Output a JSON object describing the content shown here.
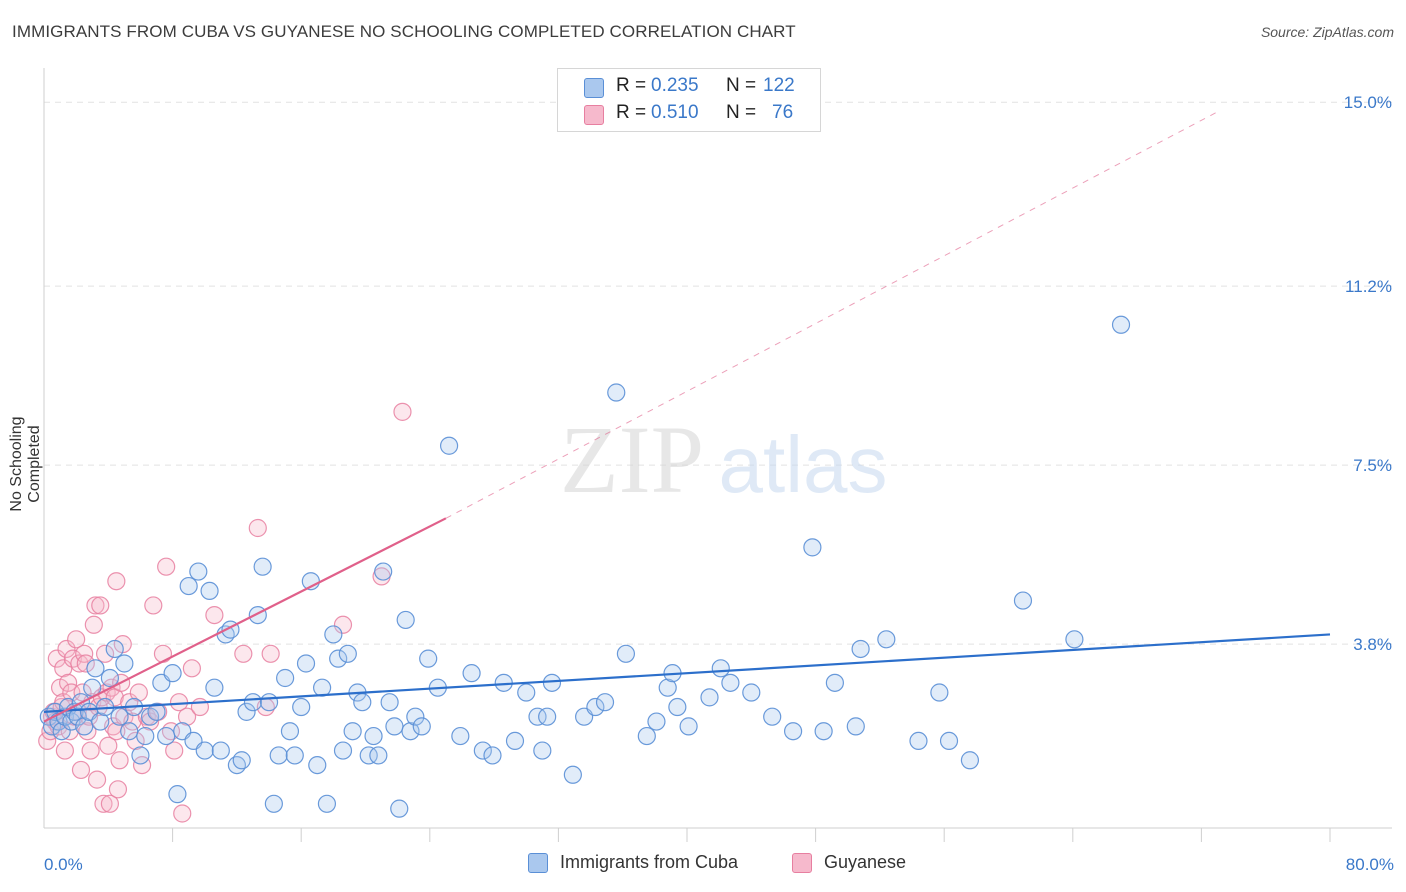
{
  "header": {
    "title": "IMMIGRANTS FROM CUBA VS GUYANESE NO SCHOOLING COMPLETED CORRELATION CHART",
    "source": "Source: ZipAtlas.com"
  },
  "watermark": {
    "zip": "ZIP",
    "atlas": "atlas"
  },
  "legend_top": {
    "rows": [
      {
        "r_label": "R =",
        "r_value": "0.235",
        "n_label": "N =",
        "n_value": "122"
      },
      {
        "r_label": "R =",
        "r_value": "0.510",
        "n_label": "N =",
        "n_value": "76"
      }
    ]
  },
  "legend_bottom": {
    "items": [
      {
        "label": "Immigrants from Cuba"
      },
      {
        "label": "Guyanese"
      }
    ]
  },
  "colors": {
    "blue_fill": "#aac8ee",
    "blue_stroke": "#5a8fd6",
    "blue_line": "#2c6fcb",
    "pink_fill": "#f6b9cc",
    "pink_stroke": "#e77fa0",
    "pink_line": "#e0608a",
    "value_text": "#3a78c9",
    "grid": "#e2e2e2"
  },
  "chart_data": {
    "type": "scatter",
    "title": "IMMIGRANTS FROM CUBA VS GUYANESE NO SCHOOLING COMPLETED CORRELATION CHART",
    "xlabel": "",
    "ylabel": "No Schooling Completed",
    "xlim": [
      0,
      80
    ],
    "ylim": [
      0,
      15.5
    ],
    "x_tick_labels": [
      "0.0%",
      "80.0%"
    ],
    "y_ticks": [
      3.8,
      7.5,
      11.2,
      15.0
    ],
    "y_tick_labels": [
      "3.8%",
      "7.5%",
      "11.2%",
      "15.0%"
    ],
    "grid": true,
    "legend_position": "top-center",
    "series": [
      {
        "name": "Immigrants from Cuba",
        "r": 0.235,
        "n": 122,
        "trend": {
          "x0": 0,
          "y0": 2.4,
          "x1": 80,
          "y1": 4.0
        },
        "points": [
          [
            0.3,
            2.3
          ],
          [
            0.5,
            2.1
          ],
          [
            0.7,
            2.4
          ],
          [
            0.9,
            2.2
          ],
          [
            1.1,
            2.0
          ],
          [
            1.3,
            2.3
          ],
          [
            1.5,
            2.5
          ],
          [
            1.7,
            2.2
          ],
          [
            1.9,
            2.4
          ],
          [
            2.1,
            2.3
          ],
          [
            2.3,
            2.6
          ],
          [
            2.5,
            2.1
          ],
          [
            2.8,
            2.4
          ],
          [
            3.0,
            2.9
          ],
          [
            3.2,
            3.3
          ],
          [
            3.5,
            2.2
          ],
          [
            3.8,
            2.5
          ],
          [
            4.1,
            3.1
          ],
          [
            4.4,
            3.7
          ],
          [
            4.7,
            2.3
          ],
          [
            5.0,
            3.4
          ],
          [
            5.3,
            2.0
          ],
          [
            5.6,
            2.5
          ],
          [
            6.0,
            1.5
          ],
          [
            6.3,
            1.9
          ],
          [
            6.6,
            2.3
          ],
          [
            7.0,
            2.4
          ],
          [
            7.3,
            3.0
          ],
          [
            7.6,
            1.9
          ],
          [
            8.0,
            3.2
          ],
          [
            8.3,
            0.7
          ],
          [
            8.6,
            2.0
          ],
          [
            9.0,
            5.0
          ],
          [
            9.3,
            1.8
          ],
          [
            9.6,
            5.3
          ],
          [
            10.0,
            1.6
          ],
          [
            10.3,
            4.9
          ],
          [
            10.6,
            2.9
          ],
          [
            11.0,
            1.6
          ],
          [
            11.3,
            4.0
          ],
          [
            11.6,
            4.1
          ],
          [
            12.0,
            1.3
          ],
          [
            12.3,
            1.4
          ],
          [
            12.6,
            2.4
          ],
          [
            13.0,
            2.6
          ],
          [
            13.3,
            4.4
          ],
          [
            13.6,
            5.4
          ],
          [
            14.0,
            2.6
          ],
          [
            14.3,
            0.5
          ],
          [
            14.6,
            1.5
          ],
          [
            15.0,
            3.1
          ],
          [
            15.3,
            2.0
          ],
          [
            15.6,
            1.5
          ],
          [
            16.0,
            2.5
          ],
          [
            16.3,
            3.4
          ],
          [
            16.6,
            5.1
          ],
          [
            17.0,
            1.3
          ],
          [
            17.3,
            2.9
          ],
          [
            17.6,
            0.5
          ],
          [
            18.0,
            4.0
          ],
          [
            18.3,
            3.5
          ],
          [
            18.6,
            1.6
          ],
          [
            18.9,
            3.6
          ],
          [
            19.2,
            2.0
          ],
          [
            19.5,
            2.8
          ],
          [
            19.8,
            2.6
          ],
          [
            20.2,
            1.5
          ],
          [
            20.5,
            1.9
          ],
          [
            20.8,
            1.5
          ],
          [
            21.1,
            5.3
          ],
          [
            21.5,
            2.6
          ],
          [
            21.8,
            2.1
          ],
          [
            22.1,
            0.4
          ],
          [
            22.5,
            4.3
          ],
          [
            22.8,
            2.0
          ],
          [
            23.1,
            2.3
          ],
          [
            23.5,
            2.1
          ],
          [
            23.9,
            3.5
          ],
          [
            24.5,
            2.9
          ],
          [
            25.2,
            7.9
          ],
          [
            25.9,
            1.9
          ],
          [
            26.6,
            3.2
          ],
          [
            27.3,
            1.6
          ],
          [
            27.9,
            1.5
          ],
          [
            28.6,
            3.0
          ],
          [
            29.3,
            1.8
          ],
          [
            30.0,
            2.8
          ],
          [
            30.7,
            2.3
          ],
          [
            31.0,
            1.6
          ],
          [
            31.3,
            2.3
          ],
          [
            31.6,
            3.0
          ],
          [
            32.9,
            1.1
          ],
          [
            33.6,
            2.3
          ],
          [
            34.3,
            2.5
          ],
          [
            34.9,
            2.6
          ],
          [
            35.6,
            9.0
          ],
          [
            36.2,
            3.6
          ],
          [
            37.5,
            1.9
          ],
          [
            38.1,
            2.2
          ],
          [
            38.8,
            2.9
          ],
          [
            39.1,
            3.2
          ],
          [
            39.4,
            2.5
          ],
          [
            40.1,
            2.1
          ],
          [
            41.4,
            2.7
          ],
          [
            42.1,
            3.3
          ],
          [
            42.7,
            3.0
          ],
          [
            44.0,
            2.8
          ],
          [
            45.3,
            2.3
          ],
          [
            46.6,
            2.0
          ],
          [
            47.8,
            5.8
          ],
          [
            48.5,
            2.0
          ],
          [
            49.2,
            3.0
          ],
          [
            50.5,
            2.1
          ],
          [
            50.8,
            3.7
          ],
          [
            52.4,
            3.9
          ],
          [
            54.4,
            1.8
          ],
          [
            55.7,
            2.8
          ],
          [
            56.3,
            1.8
          ],
          [
            57.6,
            1.4
          ],
          [
            60.9,
            4.7
          ],
          [
            64.1,
            3.9
          ],
          [
            67.0,
            10.4
          ]
        ]
      },
      {
        "name": "Guyanese",
        "r": 0.51,
        "n": 76,
        "trend": {
          "x0": 0,
          "y0": 2.2,
          "x1": 25,
          "y1": 6.4
        },
        "dashed_extension": {
          "x0": 25,
          "y0": 6.4,
          "x1": 73,
          "y1": 14.8
        },
        "points": [
          [
            0.2,
            1.8
          ],
          [
            0.4,
            2.0
          ],
          [
            0.5,
            2.3
          ],
          [
            0.6,
            2.4
          ],
          [
            0.7,
            2.2
          ],
          [
            0.8,
            3.5
          ],
          [
            0.9,
            2.1
          ],
          [
            1.0,
            2.9
          ],
          [
            1.1,
            2.5
          ],
          [
            1.2,
            3.3
          ],
          [
            1.2,
            2.6
          ],
          [
            1.3,
            1.6
          ],
          [
            1.4,
            3.7
          ],
          [
            1.5,
            3.0
          ],
          [
            1.6,
            2.0
          ],
          [
            1.7,
            2.8
          ],
          [
            1.8,
            3.5
          ],
          [
            1.9,
            2.3
          ],
          [
            2.0,
            3.9
          ],
          [
            2.1,
            2.4
          ],
          [
            2.2,
            3.4
          ],
          [
            2.3,
            1.2
          ],
          [
            2.4,
            2.8
          ],
          [
            2.5,
            3.6
          ],
          [
            2.6,
            3.4
          ],
          [
            2.7,
            2.0
          ],
          [
            2.8,
            2.3
          ],
          [
            2.9,
            1.6
          ],
          [
            3.0,
            2.6
          ],
          [
            3.1,
            4.2
          ],
          [
            3.2,
            4.6
          ],
          [
            3.3,
            1.0
          ],
          [
            3.4,
            2.5
          ],
          [
            3.5,
            4.6
          ],
          [
            3.6,
            2.7
          ],
          [
            3.7,
            0.5
          ],
          [
            3.8,
            3.6
          ],
          [
            3.9,
            2.8
          ],
          [
            4.0,
            1.7
          ],
          [
            4.1,
            0.5
          ],
          [
            4.2,
            2.9
          ],
          [
            4.3,
            2.1
          ],
          [
            4.4,
            2.7
          ],
          [
            4.5,
            5.1
          ],
          [
            4.5,
            2.0
          ],
          [
            4.6,
            0.8
          ],
          [
            4.7,
            1.4
          ],
          [
            4.8,
            3.0
          ],
          [
            4.9,
            3.8
          ],
          [
            5.0,
            2.3
          ],
          [
            5.3,
            2.6
          ],
          [
            5.5,
            2.2
          ],
          [
            5.7,
            1.8
          ],
          [
            5.9,
            2.8
          ],
          [
            6.1,
            1.3
          ],
          [
            6.4,
            2.3
          ],
          [
            6.6,
            2.2
          ],
          [
            6.8,
            4.6
          ],
          [
            7.1,
            2.4
          ],
          [
            7.4,
            3.6
          ],
          [
            7.6,
            5.4
          ],
          [
            7.9,
            2.0
          ],
          [
            8.1,
            1.6
          ],
          [
            8.4,
            2.6
          ],
          [
            8.6,
            0.3
          ],
          [
            8.9,
            2.3
          ],
          [
            9.2,
            3.3
          ],
          [
            9.7,
            2.5
          ],
          [
            10.6,
            4.4
          ],
          [
            12.4,
            3.6
          ],
          [
            13.3,
            6.2
          ],
          [
            13.8,
            2.5
          ],
          [
            14.1,
            3.6
          ],
          [
            18.6,
            4.2
          ],
          [
            21.0,
            5.2
          ],
          [
            22.3,
            8.6
          ]
        ]
      }
    ]
  }
}
